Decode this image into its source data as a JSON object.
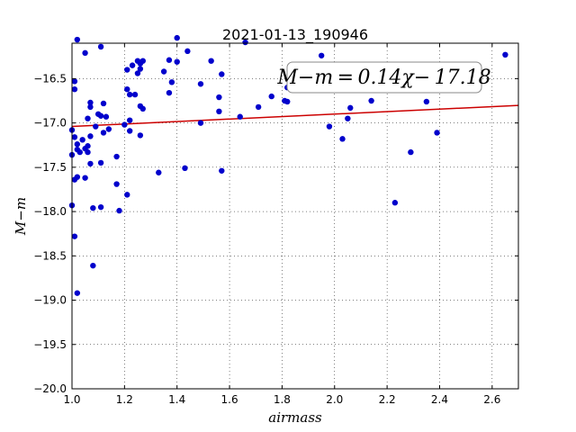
{
  "chart_data": {
    "type": "scatter",
    "title": "2021-01-13_190946",
    "xlabel": "airmass",
    "ylabel": "M−m",
    "xlim": [
      1.0,
      2.7
    ],
    "ylim": [
      -20.0,
      -16.1
    ],
    "y_inverted": true,
    "grid": true,
    "x_ticks": [
      "1.0",
      "1.2",
      "1.4",
      "1.6",
      "1.8",
      "2.0",
      "2.2",
      "2.4",
      "2.6"
    ],
    "y_ticks": [
      "−16.5",
      "−17.0",
      "−17.5",
      "−18.0",
      "−18.5",
      "−19.0",
      "−19.5",
      "−20.0"
    ],
    "annotation": "M−m = 0.14χ− 17.18",
    "fit": {
      "slope": 0.14,
      "intercept": -17.18,
      "color": "#cc0000"
    },
    "marker_color": "#0000cc",
    "points": [
      {
        "x": 1.01,
        "y": -16.53
      },
      {
        "x": 1.01,
        "y": -16.62
      },
      {
        "x": 1.0,
        "y": -17.08
      },
      {
        "x": 1.01,
        "y": -17.16
      },
      {
        "x": 1.0,
        "y": -17.36
      },
      {
        "x": 1.02,
        "y": -17.24
      },
      {
        "x": 1.02,
        "y": -17.3
      },
      {
        "x": 1.03,
        "y": -17.33
      },
      {
        "x": 1.01,
        "y": -17.64
      },
      {
        "x": 1.02,
        "y": -17.61
      },
      {
        "x": 1.0,
        "y": -17.93
      },
      {
        "x": 1.01,
        "y": -18.28
      },
      {
        "x": 1.02,
        "y": -18.92
      },
      {
        "x": 1.02,
        "y": -16.06
      },
      {
        "x": 1.05,
        "y": -16.21
      },
      {
        "x": 1.04,
        "y": -17.19
      },
      {
        "x": 1.05,
        "y": -17.29
      },
      {
        "x": 1.06,
        "y": -17.33
      },
      {
        "x": 1.06,
        "y": -17.26
      },
      {
        "x": 1.05,
        "y": -17.62
      },
      {
        "x": 1.06,
        "y": -16.95
      },
      {
        "x": 1.07,
        "y": -16.77
      },
      {
        "x": 1.07,
        "y": -16.82
      },
      {
        "x": 1.07,
        "y": -17.15
      },
      {
        "x": 1.07,
        "y": -17.46
      },
      {
        "x": 1.08,
        "y": -17.96
      },
      {
        "x": 1.08,
        "y": -18.61
      },
      {
        "x": 1.09,
        "y": -17.04
      },
      {
        "x": 1.1,
        "y": -16.9
      },
      {
        "x": 1.11,
        "y": -16.14
      },
      {
        "x": 1.11,
        "y": -16.92
      },
      {
        "x": 1.11,
        "y": -17.45
      },
      {
        "x": 1.11,
        "y": -17.95
      },
      {
        "x": 1.12,
        "y": -16.78
      },
      {
        "x": 1.12,
        "y": -17.11
      },
      {
        "x": 1.13,
        "y": -16.93
      },
      {
        "x": 1.14,
        "y": -17.07
      },
      {
        "x": 1.17,
        "y": -17.38
      },
      {
        "x": 1.17,
        "y": -17.69
      },
      {
        "x": 1.18,
        "y": -17.99
      },
      {
        "x": 1.2,
        "y": -17.02
      },
      {
        "x": 1.21,
        "y": -16.62
      },
      {
        "x": 1.21,
        "y": -16.4
      },
      {
        "x": 1.21,
        "y": -17.81
      },
      {
        "x": 1.22,
        "y": -16.68
      },
      {
        "x": 1.22,
        "y": -16.97
      },
      {
        "x": 1.22,
        "y": -17.09
      },
      {
        "x": 1.23,
        "y": -16.35
      },
      {
        "x": 1.24,
        "y": -16.68
      },
      {
        "x": 1.25,
        "y": -16.3
      },
      {
        "x": 1.25,
        "y": -16.44
      },
      {
        "x": 1.26,
        "y": -16.33
      },
      {
        "x": 1.26,
        "y": -16.39
      },
      {
        "x": 1.26,
        "y": -16.81
      },
      {
        "x": 1.26,
        "y": -17.14
      },
      {
        "x": 1.27,
        "y": -16.3
      },
      {
        "x": 1.27,
        "y": -16.84
      },
      {
        "x": 1.33,
        "y": -17.56
      },
      {
        "x": 1.35,
        "y": -16.42
      },
      {
        "x": 1.37,
        "y": -16.29
      },
      {
        "x": 1.37,
        "y": -16.66
      },
      {
        "x": 1.38,
        "y": -16.54
      },
      {
        "x": 1.4,
        "y": -16.04
      },
      {
        "x": 1.4,
        "y": -16.31
      },
      {
        "x": 1.43,
        "y": -17.51
      },
      {
        "x": 1.44,
        "y": -16.19
      },
      {
        "x": 1.49,
        "y": -16.56
      },
      {
        "x": 1.49,
        "y": -17.0
      },
      {
        "x": 1.53,
        "y": -16.3
      },
      {
        "x": 1.56,
        "y": -16.71
      },
      {
        "x": 1.56,
        "y": -16.87
      },
      {
        "x": 1.57,
        "y": -16.45
      },
      {
        "x": 1.57,
        "y": -17.54
      },
      {
        "x": 1.64,
        "y": -16.93
      },
      {
        "x": 1.66,
        "y": -16.09
      },
      {
        "x": 1.71,
        "y": -16.82
      },
      {
        "x": 1.76,
        "y": -16.7
      },
      {
        "x": 1.81,
        "y": -16.75
      },
      {
        "x": 1.82,
        "y": -16.76
      },
      {
        "x": 1.82,
        "y": -16.6
      },
      {
        "x": 1.95,
        "y": -16.24
      },
      {
        "x": 1.98,
        "y": -17.04
      },
      {
        "x": 2.03,
        "y": -17.18
      },
      {
        "x": 2.05,
        "y": -16.95
      },
      {
        "x": 2.06,
        "y": -16.83
      },
      {
        "x": 2.14,
        "y": -16.75
      },
      {
        "x": 2.23,
        "y": -17.9
      },
      {
        "x": 2.29,
        "y": -17.33
      },
      {
        "x": 2.35,
        "y": -16.76
      },
      {
        "x": 2.39,
        "y": -17.11
      },
      {
        "x": 2.65,
        "y": -16.23
      }
    ]
  }
}
